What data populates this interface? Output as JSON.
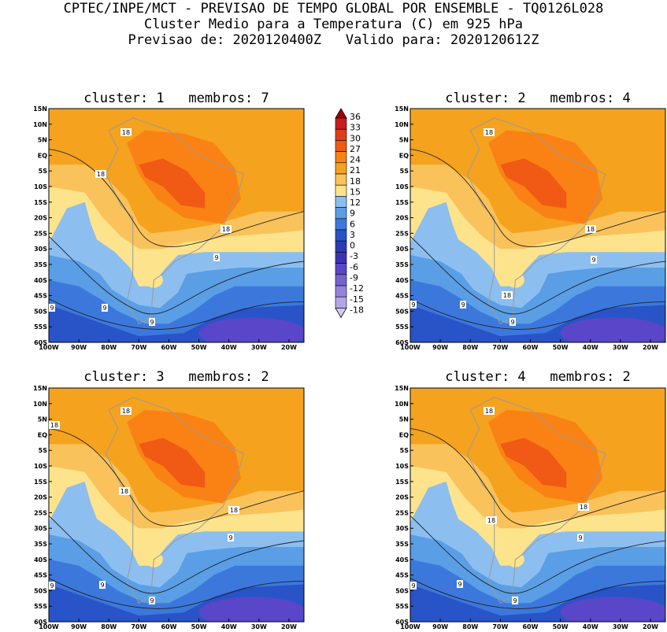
{
  "header": {
    "line1": "CPTEC/INPE/MCT - PREVISAO DE TEMPO GLOBAL POR ENSEMBLE - TQ0126L028",
    "line2": "Cluster Medio para a Temperatura (C) em 925 hPa",
    "line3": "Previsao de: 2020120400Z   Valido para: 2020120612Z"
  },
  "chart_data": [
    {
      "type": "heatmap",
      "title": "cluster: 1   membros: 7",
      "cluster": 1,
      "membros": 7,
      "x_ticks": [
        "100W",
        "90W",
        "80W",
        "70W",
        "60W",
        "50W",
        "40W",
        "30W",
        "20W"
      ],
      "y_ticks": [
        "15N",
        "10N",
        "5N",
        "EQ",
        "5S",
        "10S",
        "15S",
        "20S",
        "25S",
        "30S",
        "35S",
        "40S",
        "45S",
        "50S",
        "55S",
        "60S"
      ],
      "xlim": [
        -100,
        -15
      ],
      "ylim": [
        -60,
        15
      ],
      "contour_labels": [
        "18",
        "18",
        "18",
        "9",
        "9",
        "9",
        "9"
      ]
    },
    {
      "type": "heatmap",
      "title": "cluster: 2   membros: 4",
      "cluster": 2,
      "membros": 4,
      "x_ticks": [
        "100W",
        "90W",
        "80W",
        "70W",
        "60W",
        "50W",
        "40W",
        "30W",
        "20W"
      ],
      "y_ticks": [
        "15N",
        "10N",
        "5N",
        "EQ",
        "5S",
        "10S",
        "15S",
        "20S",
        "25S",
        "30S",
        "35S",
        "40S",
        "45S",
        "50S",
        "55S",
        "60S"
      ],
      "xlim": [
        -100,
        -15
      ],
      "ylim": [
        -60,
        15
      ],
      "contour_labels": [
        "18",
        "18",
        "18",
        "9",
        "9",
        "9",
        "9"
      ]
    },
    {
      "type": "heatmap",
      "title": "cluster: 3   membros: 2",
      "cluster": 3,
      "membros": 2,
      "x_ticks": [
        "100W",
        "90W",
        "80W",
        "70W",
        "60W",
        "50W",
        "40W",
        "30W",
        "20W"
      ],
      "y_ticks": [
        "15N",
        "10N",
        "5N",
        "EQ",
        "5S",
        "10S",
        "15S",
        "20S",
        "25S",
        "30S",
        "35S",
        "40S",
        "45S",
        "50S",
        "55S",
        "60S"
      ],
      "xlim": [
        -100,
        -15
      ],
      "ylim": [
        -60,
        15
      ],
      "contour_labels": [
        "18",
        "18",
        "18",
        "18",
        "9",
        "9",
        "9",
        "9"
      ]
    },
    {
      "type": "heatmap",
      "title": "cluster: 4   membros: 2",
      "cluster": 4,
      "membros": 2,
      "x_ticks": [
        "100W",
        "90W",
        "80W",
        "70W",
        "60W",
        "50W",
        "40W",
        "30W",
        "20W"
      ],
      "y_ticks": [
        "15N",
        "10N",
        "5N",
        "EQ",
        "5S",
        "10S",
        "15S",
        "20S",
        "25S",
        "30S",
        "35S",
        "40S",
        "45S",
        "50S",
        "55S",
        "60S"
      ],
      "xlim": [
        -100,
        -15
      ],
      "ylim": [
        -60,
        15
      ],
      "contour_labels": [
        "18",
        "18",
        "18",
        "9",
        "9",
        "9",
        "9"
      ]
    }
  ],
  "colorbar": {
    "labels": [
      "36",
      "33",
      "30",
      "27",
      "24",
      "21",
      "18",
      "15",
      "12",
      "9",
      "6",
      "3",
      "0",
      "-3",
      "-6",
      "-9",
      "-12",
      "-15",
      "-18"
    ],
    "colors": [
      "#a40000",
      "#c81e1e",
      "#e03c1e",
      "#f05a14",
      "#fa8214",
      "#f5a21e",
      "#fac25a",
      "#fde38c",
      "#8cbef0",
      "#5a9ee6",
      "#3c78dc",
      "#2854c8",
      "#2a3cb4",
      "#3c32b4",
      "#5a46c8",
      "#7862d2",
      "#9682dc",
      "#b4a5e6",
      "#d2c8f0"
    ]
  }
}
